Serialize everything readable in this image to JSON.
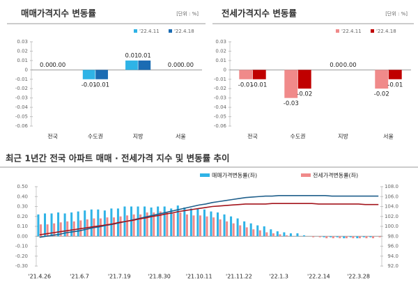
{
  "chart_data": [
    {
      "type": "bar",
      "title": "매매가격지수 변동률",
      "unit": "[단위 : %]",
      "categories": [
        "전국",
        "수도권",
        "지방",
        "서울"
      ],
      "series": [
        {
          "name": "'22.4.11",
          "color": "#2fb3e6",
          "type": "bar",
          "values": [
            0,
            -0.01,
            0.01,
            0
          ],
          "value_labels": [
            "0.00",
            "-0.01",
            "0.01",
            "0.00"
          ]
        },
        {
          "name": "'22.4.18",
          "color": "#1b6cb3",
          "type": "bar",
          "values": [
            0,
            -0.01,
            0.01,
            0
          ],
          "value_labels": [
            "0.00",
            "-0.01",
            "0.01",
            "0.00"
          ]
        }
      ],
      "ylim": [
        -0.06,
        0.03
      ],
      "yticks": [
        0.03,
        0.02,
        0.01,
        0,
        -0.01,
        -0.02,
        -0.03,
        -0.04,
        -0.05,
        -0.06
      ]
    },
    {
      "type": "bar",
      "title": "전세가격지수 변동률",
      "unit": "[단위 : %]",
      "categories": [
        "전국",
        "수도권",
        "지방",
        "서울"
      ],
      "series": [
        {
          "name": "'22.4.11",
          "color": "#f08a8a",
          "type": "bar",
          "values": [
            -0.01,
            -0.03,
            0,
            -0.02
          ],
          "value_labels": [
            "-0.01",
            "-0.03",
            "0.00",
            "-0.02"
          ]
        },
        {
          "name": "'22.4.18",
          "color": "#c00000",
          "type": "bar",
          "values": [
            -0.01,
            -0.02,
            0,
            -0.01
          ],
          "value_labels": [
            "-0.01",
            "-0.02",
            "0.00",
            "-0.01"
          ]
        }
      ],
      "ylim": [
        -0.06,
        0.03
      ],
      "yticks": [
        0.03,
        0.02,
        0.01,
        0,
        -0.01,
        -0.02,
        -0.03,
        -0.04,
        -0.05,
        -0.06
      ]
    },
    {
      "type": "combo",
      "title": "최근 1년간 전국 아파트 매매 · 전세가격 지수 및 변동률 추이",
      "categories": [
        "'21.4.26",
        null,
        null,
        null,
        null,
        null,
        "'21.6.7",
        null,
        null,
        null,
        null,
        null,
        "'21.7.19",
        null,
        null,
        null,
        null,
        null,
        "'21.8.30",
        null,
        null,
        null,
        null,
        null,
        "'21.10.11",
        null,
        null,
        null,
        null,
        null,
        "'21.11.22",
        null,
        null,
        null,
        null,
        null,
        "'22.1.3",
        null,
        null,
        null,
        null,
        null,
        "'22.2.14",
        null,
        null,
        null,
        null,
        null,
        "'22.3.28",
        null,
        null,
        null
      ],
      "series": [
        {
          "name": "매매가격변동률(좌)",
          "color": "#2fb3e6",
          "type": "bar",
          "values": [
            0.22,
            0.23,
            0.23,
            0.24,
            0.23,
            0.24,
            0.25,
            0.26,
            0.27,
            0.27,
            0.26,
            0.28,
            0.28,
            0.3,
            0.3,
            0.3,
            0.3,
            0.29,
            0.3,
            0.3,
            0.28,
            0.31,
            0.29,
            0.28,
            0.28,
            0.27,
            0.25,
            0.24,
            0.22,
            0.2,
            0.18,
            0.15,
            0.13,
            0.11,
            0.1,
            0.07,
            0.05,
            0.04,
            0.03,
            0.03,
            0.01,
            0.0,
            0.0,
            -0.01,
            -0.01,
            -0.01,
            -0.02,
            -0.01,
            -0.02,
            -0.01,
            -0.01,
            0.0
          ]
        },
        {
          "name": "전세가격변동률(좌)",
          "color": "#f08a8a",
          "type": "bar",
          "values": [
            0.12,
            0.12,
            0.13,
            0.14,
            0.15,
            0.15,
            0.16,
            0.17,
            0.18,
            0.18,
            0.19,
            0.19,
            0.2,
            0.21,
            0.22,
            0.22,
            0.24,
            0.24,
            0.25,
            0.24,
            0.23,
            0.24,
            0.22,
            0.21,
            0.21,
            0.2,
            0.19,
            0.17,
            0.15,
            0.13,
            0.11,
            0.09,
            0.07,
            0.06,
            0.04,
            0.03,
            0.02,
            0.01,
            0.0,
            0.0,
            0.0,
            -0.01,
            -0.01,
            -0.02,
            -0.02,
            -0.02,
            -0.02,
            -0.02,
            -0.02,
            -0.02,
            -0.02,
            -0.01
          ]
        },
        {
          "color": "#1f5f8b",
          "type": "line",
          "axis": "y2",
          "values": [
            97.8,
            98.0,
            98.2,
            98.4,
            98.7,
            98.9,
            99.1,
            99.4,
            99.7,
            99.9,
            100.2,
            100.4,
            100.7,
            101.0,
            101.3,
            101.6,
            101.9,
            102.2,
            102.5,
            102.8,
            103.1,
            103.4,
            103.7,
            104.0,
            104.3,
            104.5,
            104.8,
            105.0,
            105.2,
            105.4,
            105.6,
            105.8,
            105.9,
            106.0,
            106.1,
            106.1,
            106.2,
            106.2,
            106.2,
            106.2,
            106.2,
            106.2,
            106.2,
            106.2,
            106.1,
            106.1,
            106.1,
            106.1,
            106.1,
            106.1,
            106.1,
            106.1
          ]
        },
        {
          "color": "#a3141c",
          "type": "line",
          "axis": "y2",
          "values": [
            98.3,
            98.5,
            98.7,
            98.9,
            99.1,
            99.3,
            99.5,
            99.7,
            99.9,
            100.1,
            100.3,
            100.5,
            100.8,
            101.0,
            101.2,
            101.5,
            101.7,
            102.0,
            102.2,
            102.5,
            102.7,
            103.0,
            103.2,
            103.4,
            103.6,
            103.8,
            104.0,
            104.1,
            104.2,
            104.3,
            104.4,
            104.5,
            104.5,
            104.5,
            104.5,
            104.6,
            104.6,
            104.6,
            104.6,
            104.6,
            104.6,
            104.6,
            104.5,
            104.5,
            104.5,
            104.5,
            104.5,
            104.5,
            104.5,
            104.4,
            104.4,
            104.4
          ]
        }
      ],
      "ylim": [
        -0.3,
        0.5
      ],
      "yticks": [
        {
          "value": 0.5,
          "label": "0.50"
        },
        {
          "value": 0.4,
          "label": "0.40"
        },
        {
          "value": 0.3,
          "label": "0.30"
        },
        {
          "value": 0.2,
          "label": "0.20"
        },
        {
          "value": 0.1,
          "label": "0.10"
        },
        {
          "value": 0,
          "label": "0.00"
        },
        {
          "value": -0.1,
          "label": "-0.10"
        },
        {
          "value": -0.2,
          "label": "-0.20"
        },
        {
          "value": -0.3,
          "label": "-0.30"
        }
      ],
      "y2lim": [
        92,
        108
      ],
      "y2ticks": [
        {
          "value": 108,
          "label": "108.0"
        },
        {
          "value": 106,
          "label": "106.0"
        },
        {
          "value": 104,
          "label": "104.0"
        },
        {
          "value": 102,
          "label": "102.0"
        },
        {
          "value": 100,
          "label": "100.0"
        },
        {
          "value": 98,
          "label": "98.0"
        },
        {
          "value": 96,
          "label": "96.0"
        },
        {
          "value": 94,
          "label": "94.0"
        },
        {
          "value": 92,
          "label": "92.0"
        }
      ]
    }
  ]
}
